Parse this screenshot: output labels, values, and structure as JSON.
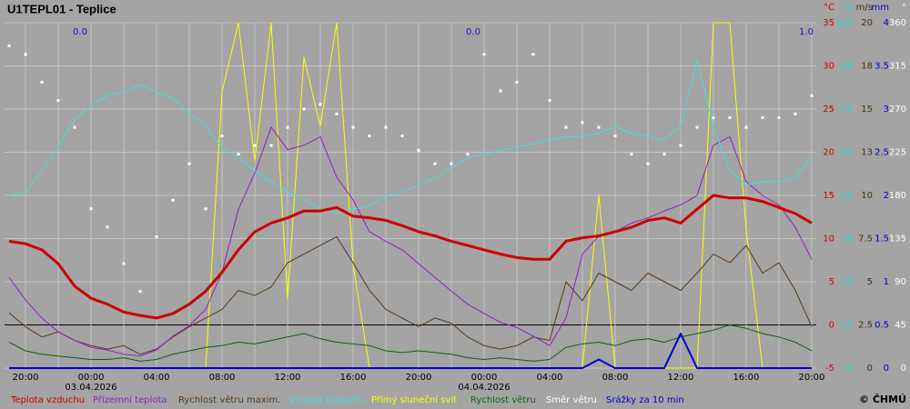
{
  "chart_data": {
    "type": "line",
    "title": "U1TEPL01 - Teplice",
    "copyright": "© ČHMÚ",
    "x": [
      -1,
      0,
      1,
      2,
      3,
      4,
      5,
      6,
      7,
      8,
      9,
      10,
      11,
      12,
      13,
      14,
      15,
      16,
      17,
      18,
      19,
      20,
      21,
      22,
      23,
      24,
      25,
      26,
      27,
      28,
      29,
      30,
      31,
      32,
      33,
      34,
      35,
      36,
      37,
      38,
      39,
      40,
      41,
      42,
      43,
      44,
      45,
      46,
      47,
      48
    ],
    "xlim": [
      -1.28,
      48.28
    ],
    "xticks": [
      {
        "value": 0,
        "label": "20:00"
      },
      {
        "value": 4,
        "label": "00:00"
      },
      {
        "value": 8,
        "label": "04:00"
      },
      {
        "value": 12,
        "label": "08:00"
      },
      {
        "value": 16,
        "label": "12:00"
      },
      {
        "value": 20,
        "label": "16:00"
      },
      {
        "value": 24,
        "label": "20:00"
      },
      {
        "value": 28,
        "label": "00:00"
      },
      {
        "value": 32,
        "label": "04:00"
      },
      {
        "value": 36,
        "label": "08:00"
      },
      {
        "value": 40,
        "label": "12:00"
      },
      {
        "value": 44,
        "label": "16:00"
      },
      {
        "value": 48,
        "label": "20:00"
      }
    ],
    "xminor": [
      2,
      6,
      10,
      14,
      18,
      22,
      26,
      30,
      34,
      38,
      42,
      46
    ],
    "date_labels": [
      {
        "value": 4,
        "label": "03.04.2026"
      },
      {
        "value": 28,
        "label": "04.04.2026"
      }
    ],
    "annotations": [
      "0.0",
      "0.0",
      "1.0"
    ],
    "grid": true,
    "zero_line": true,
    "ylabel": "°C",
    "ycolor": "#d00000",
    "ylim": [
      -5,
      35
    ],
    "yticks": [
      35,
      30,
      25,
      20,
      15,
      10,
      5,
      0,
      -5
    ],
    "y2label": "%",
    "y2color": "#30d0d0",
    "y2lim": [
      0,
      100
    ],
    "y2ticks": [
      100,
      {
        "value": 87.5,
        "label": "88"
      },
      75,
      {
        "value": 62.5,
        "label": "63"
      },
      50,
      {
        "value": 37.5,
        "label": "38"
      },
      25,
      {
        "value": 12.5,
        "label": "13"
      },
      0
    ],
    "y3label": "m/s",
    "y3color": "#4a2e12",
    "y3lim": [
      0,
      20
    ],
    "y3ticks": [
      20,
      {
        "value": 17.5,
        "label": "18"
      },
      15,
      {
        "value": 12.5,
        "label": "13"
      },
      10,
      7.5,
      5,
      2.5,
      0
    ],
    "y4label": "mm",
    "y4color": "#0000c0",
    "y4lim": [
      0,
      4
    ],
    "y4ticks": [
      4,
      3.5,
      3,
      2.5,
      2,
      1.5,
      1,
      0.5,
      0
    ],
    "y5label": "°",
    "y5color": "#ffffff",
    "y5lim": [
      0,
      360
    ],
    "y5ticks": [
      360,
      315,
      270,
      225,
      180,
      135,
      90,
      45,
      0
    ],
    "series": [
      {
        "name": "Teplota vzduchu",
        "color": "#cc0000",
        "axis": "y",
        "width": 3,
        "values": [
          9.7,
          9.4,
          8.7,
          7.1,
          4.5,
          3.1,
          2.4,
          1.5,
          1.1,
          0.8,
          1.3,
          2.4,
          3.9,
          6.1,
          8.7,
          10.8,
          11.8,
          12.4,
          13.2,
          13.2,
          13.6,
          12.6,
          12.4,
          12.1,
          11.5,
          10.8,
          10.3,
          9.7,
          9.2,
          8.7,
          8.2,
          7.8,
          7.6,
          7.6,
          9.7,
          10.1,
          10.3,
          10.8,
          11.3,
          12.1,
          12.4,
          11.8,
          13.4,
          15.0,
          14.7,
          14.7,
          14.3,
          13.6,
          12.9,
          11.8
        ]
      },
      {
        "name": "Přízemní teplota",
        "color": "#9020c0",
        "axis": "y",
        "width": 1,
        "values": [
          5.5,
          2.9,
          0.8,
          -0.8,
          -1.8,
          -2.6,
          -2.9,
          -3.4,
          -3.6,
          -2.9,
          -1.3,
          -0.1,
          1.8,
          6.1,
          13.4,
          17.6,
          22.9,
          20.3,
          20.8,
          21.8,
          17.1,
          14.5,
          10.8,
          9.7,
          8.7,
          7.1,
          5.5,
          3.9,
          2.4,
          1.3,
          0.3,
          -0.3,
          -1.3,
          -2.4,
          0.8,
          8.2,
          10.3,
          10.8,
          11.8,
          12.4,
          13.2,
          13.9,
          15.0,
          20.8,
          21.8,
          16.6,
          15.0,
          13.9,
          11.3,
          7.6
        ]
      },
      {
        "name": "Rychlost větru maxim.",
        "color": "#5a3818",
        "axis": "y3",
        "width": 1,
        "values": [
          3.2,
          2.4,
          1.8,
          2.1,
          1.6,
          1.3,
          1.1,
          1.3,
          0.8,
          1.1,
          1.8,
          2.4,
          2.9,
          3.4,
          4.5,
          4.2,
          4.7,
          6.1,
          6.6,
          7.1,
          7.6,
          6.1,
          4.5,
          3.4,
          2.9,
          2.4,
          2.9,
          2.6,
          1.8,
          1.3,
          1.1,
          1.3,
          1.8,
          1.6,
          5.0,
          3.9,
          5.5,
          5.0,
          4.5,
          5.5,
          5.0,
          4.5,
          5.5,
          6.6,
          6.1,
          7.1,
          5.5,
          6.1,
          4.5,
          2.4
        ]
      },
      {
        "name": "Vlhkost vzduchu",
        "color": "#40e0e0",
        "axis": "y2",
        "width": 1,
        "values": [
          50,
          51,
          57,
          64,
          72,
          76,
          79,
          80,
          82,
          80,
          78,
          74,
          70,
          64,
          61,
          57,
          54,
          51,
          49,
          46,
          45,
          46,
          47,
          50,
          51,
          53,
          55,
          58,
          61,
          62,
          63,
          64,
          65,
          66,
          67,
          67,
          68,
          70,
          68,
          67,
          66,
          70,
          89,
          70,
          57,
          53,
          54,
          54,
          55,
          61
        ]
      },
      {
        "name": "Přímý sluneční svit",
        "color": "#ffff00",
        "axis": "y2",
        "width": 1,
        "values": [
          0,
          0,
          0,
          0,
          0,
          0,
          0,
          0,
          0,
          0,
          0,
          0,
          0,
          80,
          100,
          60,
          100,
          20,
          90,
          70,
          100,
          30,
          0,
          0,
          0,
          0,
          0,
          0,
          0,
          0,
          0,
          0,
          0,
          0,
          0,
          0,
          50,
          0,
          0,
          0,
          0,
          0,
          0,
          100,
          100,
          40,
          0,
          0,
          0,
          0
        ]
      },
      {
        "name": "Rychlost větru",
        "color": "#106010",
        "axis": "y3",
        "width": 1,
        "values": [
          1.5,
          1.0,
          0.8,
          0.7,
          0.6,
          0.5,
          0.5,
          0.6,
          0.4,
          0.5,
          0.8,
          1.0,
          1.2,
          1.3,
          1.5,
          1.4,
          1.6,
          1.8,
          2.0,
          1.7,
          1.5,
          1.4,
          1.3,
          1.0,
          0.9,
          1.0,
          0.9,
          0.8,
          0.6,
          0.5,
          0.6,
          0.5,
          0.4,
          0.5,
          1.2,
          1.4,
          1.5,
          1.3,
          1.6,
          1.7,
          1.5,
          1.8,
          2.0,
          2.2,
          2.5,
          2.3,
          2.0,
          1.8,
          1.5,
          1.0
        ]
      },
      {
        "name": "Směr větru",
        "color": "#ffffff",
        "axis": "y5",
        "marker": "dots",
        "values": [
          336,
          327,
          298,
          279,
          251,
          166,
          147,
          109,
          80,
          137,
          175,
          213,
          166,
          242,
          223,
          232,
          232,
          251,
          270,
          275,
          265,
          251,
          242,
          251,
          242,
          227,
          213,
          213,
          223,
          327,
          289,
          298,
          327,
          279,
          251,
          256,
          251,
          242,
          223,
          213,
          223,
          232,
          251,
          261,
          261,
          251,
          261,
          261,
          265,
          284
        ]
      },
      {
        "name": "Srážky za 10 min",
        "color": "#0000cc",
        "axis": "y4",
        "width": 2,
        "values": [
          0,
          0,
          0,
          0,
          0,
          0,
          0,
          0,
          0,
          0,
          0,
          0,
          0,
          0,
          0,
          0,
          0,
          0,
          0,
          0,
          0,
          0,
          0,
          0,
          0,
          0,
          0,
          0,
          0,
          0,
          0,
          0,
          0,
          0,
          0,
          0,
          0.1,
          0,
          0,
          0,
          0,
          0.4,
          0,
          0,
          0,
          0,
          0,
          0,
          0,
          0
        ]
      }
    ]
  }
}
